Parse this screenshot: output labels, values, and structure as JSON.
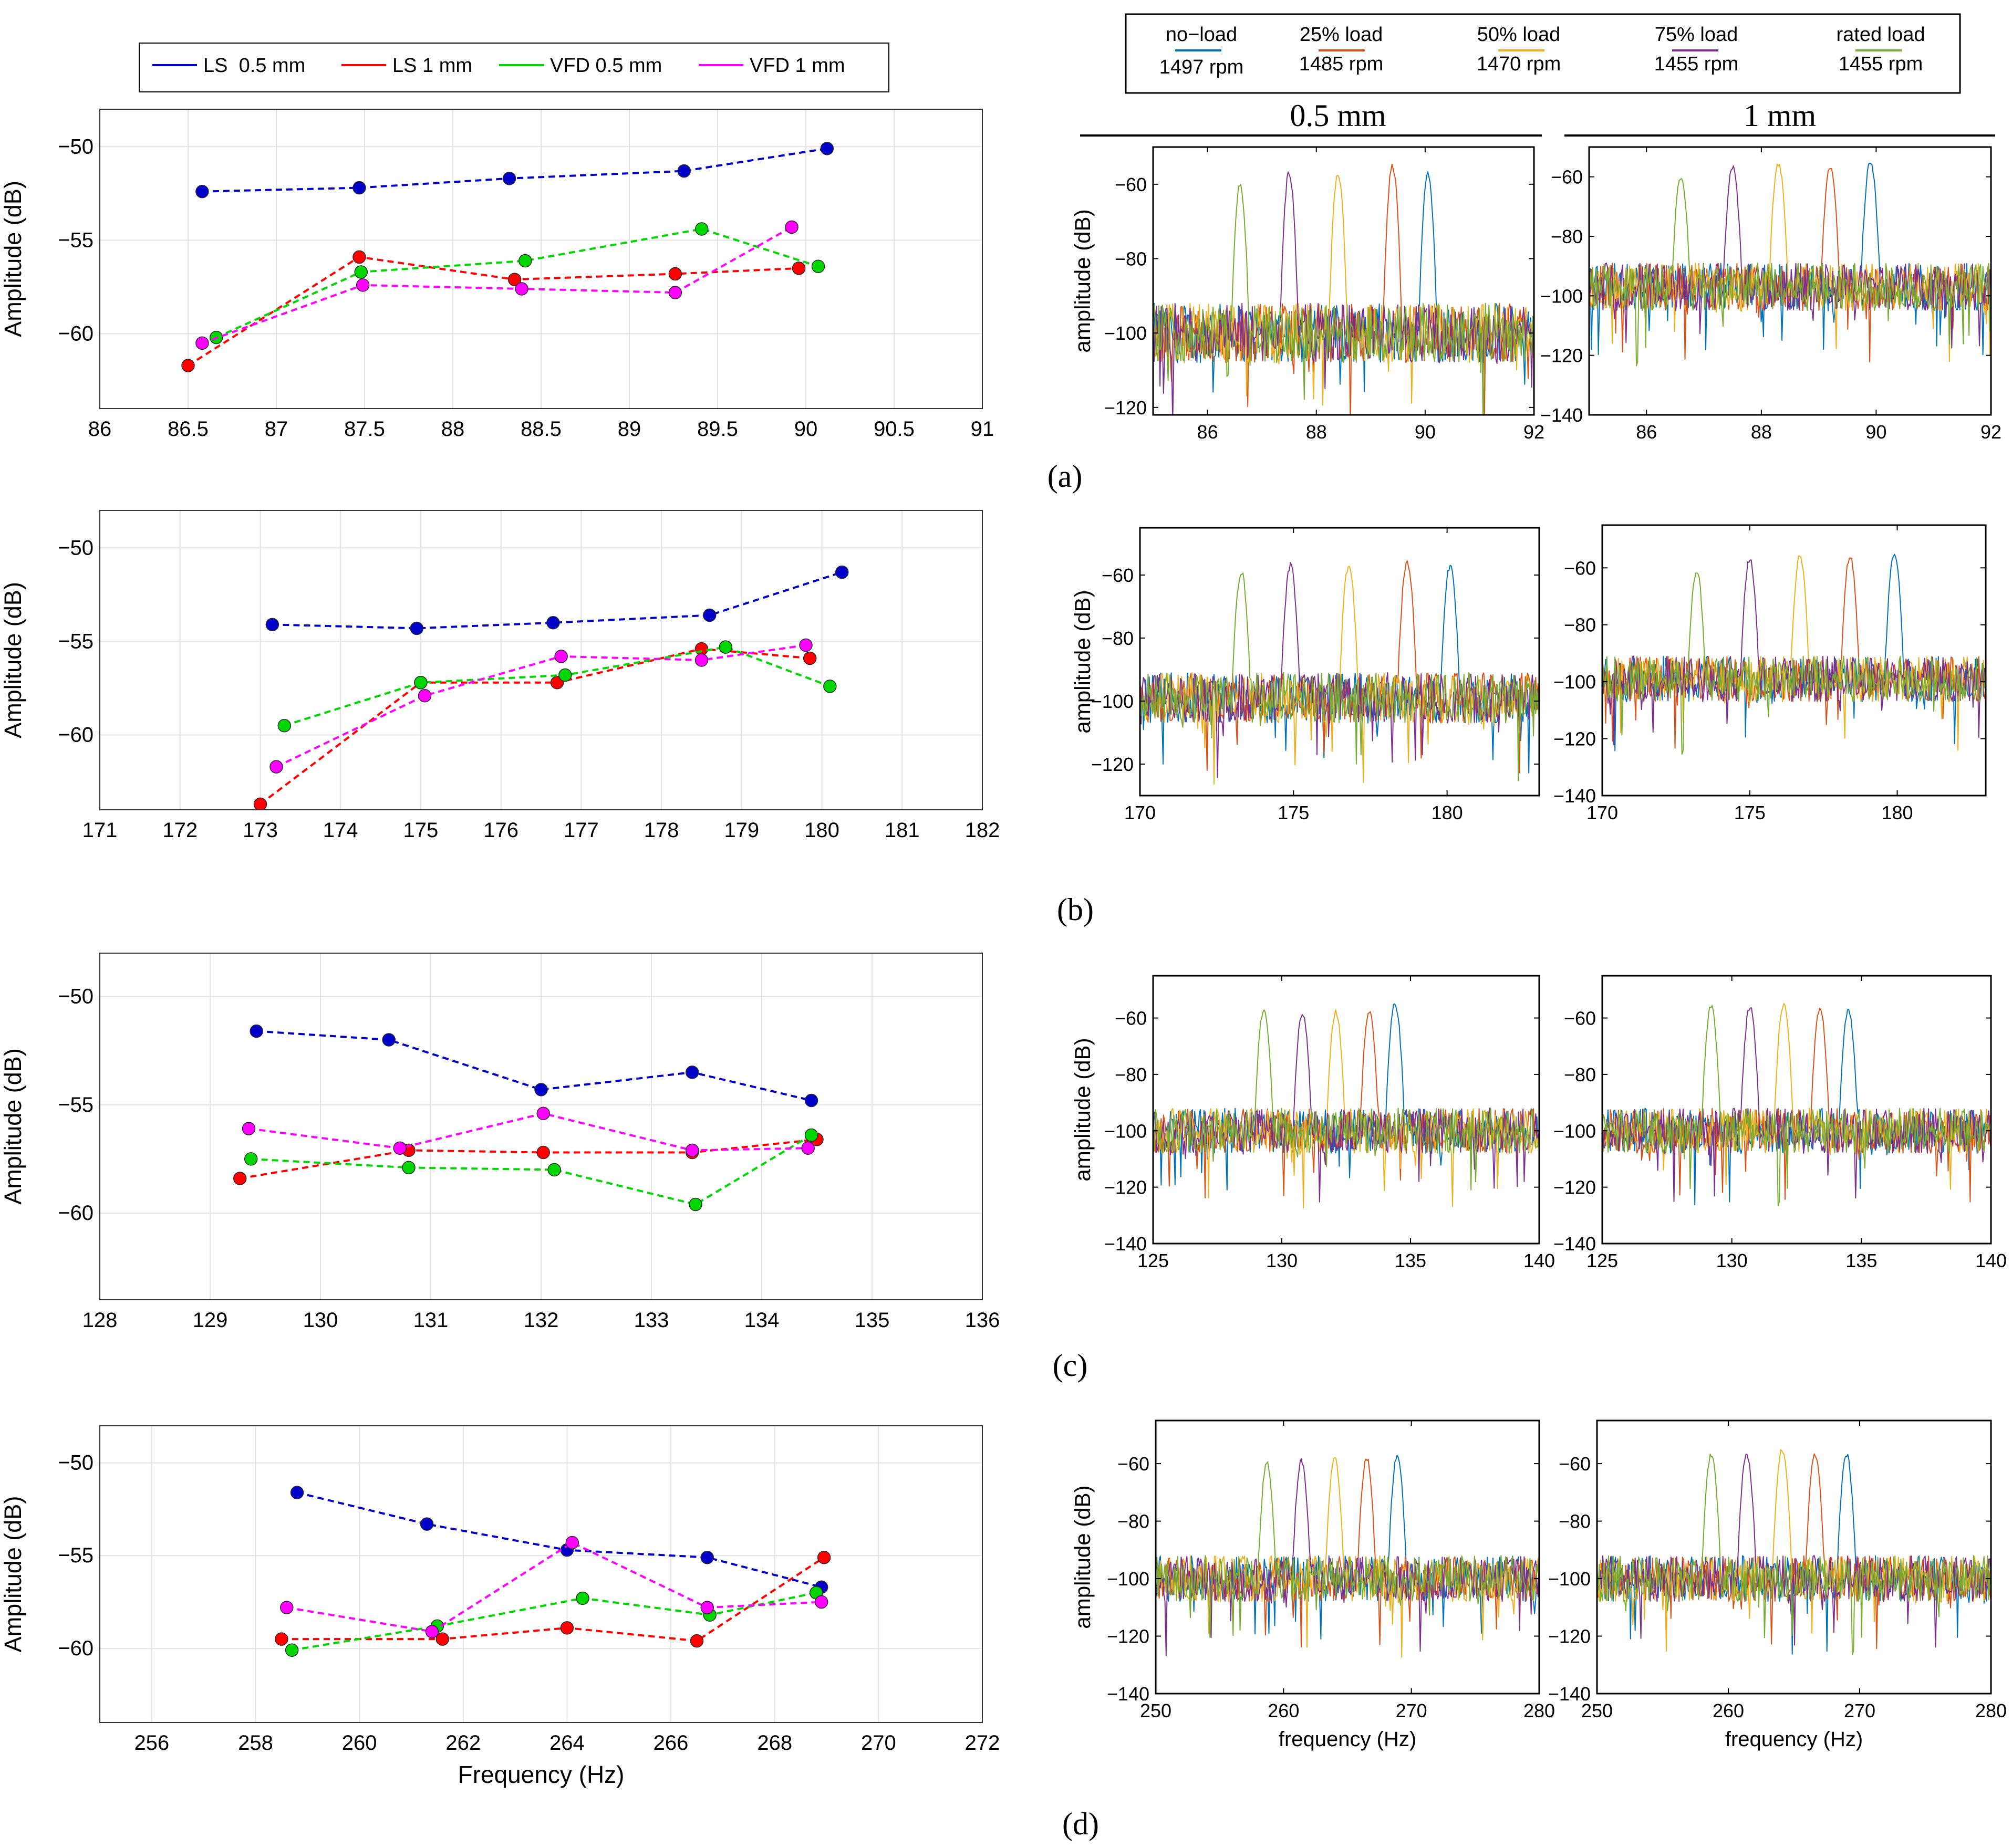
{
  "panel_letters": [
    "(a)",
    "(b)",
    "(c)",
    "(d)"
  ],
  "column_titles": {
    "left": "0.5 mm",
    "right": "1 mm"
  },
  "legend_left": [
    {
      "label": "LS  0.5 mm",
      "color": "#0000c8"
    },
    {
      "label": "LS 1 mm",
      "color": "#ff0000"
    },
    {
      "label": "VFD 0.5 mm",
      "color": "#00d700"
    },
    {
      "label": "VFD 1 mm",
      "color": "#ff00ff"
    }
  ],
  "legend_right": [
    {
      "load": "no−load",
      "speed": "1497 rpm",
      "color": "#0072bd"
    },
    {
      "load": "25% load",
      "speed": "1485 rpm",
      "color": "#d95319"
    },
    {
      "load": "50% load",
      "speed": "1470 rpm",
      "color": "#edb120"
    },
    {
      "load": "75% load",
      "speed": "1455 rpm",
      "color": "#7e2f8e"
    },
    {
      "load": "rated load",
      "speed": "1455 rpm",
      "color": "#77ac30"
    }
  ],
  "chart_data": [
    {
      "id": "a-left",
      "type": "line",
      "xlabel": "",
      "ylabel": "Amplitude (dB)",
      "xlim": [
        86,
        91
      ],
      "ylim": [
        -64,
        -48
      ],
      "xticks": [
        86,
        86.5,
        87,
        87.5,
        88,
        88.5,
        89,
        89.5,
        90,
        90.5,
        91
      ],
      "xtick_labels": [
        "86",
        "86.5",
        "87",
        "87.5",
        "88",
        "88.5",
        "89",
        "89.5",
        "90",
        "90.5",
        "91"
      ],
      "yticks": [
        -60,
        -55,
        -50
      ],
      "ytick_labels": [
        "−60",
        "−55",
        "−50"
      ],
      "series": [
        {
          "name": "LS  0.5 mm",
          "color": "#0000c8",
          "x": [
            86.58,
            87.47,
            88.32,
            89.31,
            90.12
          ],
          "y": [
            -52.4,
            -52.2,
            -51.7,
            -51.3,
            -50.1
          ]
        },
        {
          "name": "LS 1 mm",
          "color": "#ff0000",
          "x": [
            86.5,
            87.47,
            88.35,
            89.26,
            89.96
          ],
          "y": [
            -61.7,
            -55.9,
            -57.1,
            -56.8,
            -56.5
          ]
        },
        {
          "name": "VFD 0.5 mm",
          "color": "#00d700",
          "x": [
            86.66,
            87.48,
            88.41,
            89.41,
            90.07
          ],
          "y": [
            -60.2,
            -56.7,
            -56.1,
            -54.4,
            -56.4
          ]
        },
        {
          "name": "VFD 1 mm",
          "color": "#ff00ff",
          "x": [
            86.58,
            87.49,
            88.39,
            89.26,
            89.92
          ],
          "y": [
            -60.5,
            -57.4,
            -57.6,
            -57.8,
            -54.3
          ]
        }
      ]
    },
    {
      "id": "b-left",
      "type": "line",
      "xlabel": "",
      "ylabel": "Amplitude (dB)",
      "xlim": [
        171,
        182
      ],
      "ylim": [
        -64,
        -48
      ],
      "xticks": [
        171,
        172,
        173,
        174,
        175,
        176,
        177,
        178,
        179,
        180,
        181,
        182
      ],
      "xtick_labels": [
        "171",
        "172",
        "173",
        "174",
        "175",
        "176",
        "177",
        "178",
        "179",
        "180",
        "181",
        "182"
      ],
      "yticks": [
        -60,
        -55,
        -50
      ],
      "ytick_labels": [
        "−60",
        "−55",
        "−50"
      ],
      "series": [
        {
          "name": "LS  0.5 mm",
          "color": "#0000c8",
          "x": [
            173.15,
            174.95,
            176.65,
            178.6,
            180.25
          ],
          "y": [
            -54.1,
            -54.3,
            -54.0,
            -53.6,
            -51.3
          ]
        },
        {
          "name": "LS 1 mm",
          "color": "#ff0000",
          "x": [
            173.0,
            175.0,
            176.7,
            178.5,
            179.85
          ],
          "y": [
            -63.7,
            -57.2,
            -57.2,
            -55.4,
            -55.9
          ]
        },
        {
          "name": "VFD 0.5 mm",
          "color": "#00d700",
          "x": [
            173.3,
            175.0,
            176.8,
            178.8,
            180.1
          ],
          "y": [
            -59.5,
            -57.2,
            -56.8,
            -55.3,
            -57.4
          ]
        },
        {
          "name": "VFD 1 mm",
          "color": "#ff00ff",
          "x": [
            173.2,
            175.05,
            176.75,
            178.5,
            179.8
          ],
          "y": [
            -61.7,
            -57.9,
            -55.8,
            -56.0,
            -55.2
          ]
        }
      ]
    },
    {
      "id": "c-left",
      "type": "line",
      "xlabel": "",
      "ylabel": "Amplitude (dB)",
      "xlim": [
        128,
        136
      ],
      "ylim": [
        -64,
        -48
      ],
      "xticks": [
        128,
        129,
        130,
        131,
        132,
        133,
        134,
        135,
        136
      ],
      "xtick_labels": [
        "128",
        "129",
        "130",
        "131",
        "132",
        "133",
        "134",
        "135",
        "136"
      ],
      "yticks": [
        -60,
        -55,
        -50
      ],
      "ytick_labels": [
        "−60",
        "−55",
        "−50"
      ],
      "series": [
        {
          "name": "LS  0.5 mm",
          "color": "#0000c8",
          "x": [
            129.42,
            130.62,
            132.0,
            133.37,
            134.45
          ],
          "y": [
            -51.6,
            -52.0,
            -54.3,
            -53.5,
            -54.8
          ]
        },
        {
          "name": "LS 1 mm",
          "color": "#ff0000",
          "x": [
            129.27,
            130.8,
            132.02,
            133.37,
            134.5
          ],
          "y": [
            -58.4,
            -57.1,
            -57.2,
            -57.2,
            -56.6
          ]
        },
        {
          "name": "VFD 0.5 mm",
          "color": "#00d700",
          "x": [
            129.37,
            130.8,
            132.12,
            133.4,
            134.45
          ],
          "y": [
            -57.5,
            -57.9,
            -58.0,
            -59.6,
            -56.4
          ]
        },
        {
          "name": "VFD 1 mm",
          "color": "#ff00ff",
          "x": [
            129.35,
            130.72,
            132.02,
            133.37,
            134.42
          ],
          "y": [
            -56.1,
            -57.0,
            -55.4,
            -57.1,
            -57.0
          ]
        }
      ]
    },
    {
      "id": "d-left",
      "type": "line",
      "xlabel": "Frequency (Hz)",
      "ylabel": "Amplitude (dB)",
      "xlim": [
        255,
        272
      ],
      "ylim": [
        -64,
        -48
      ],
      "xticks": [
        256,
        258,
        260,
        262,
        264,
        266,
        268,
        270,
        272
      ],
      "xtick_labels": [
        "256",
        "258",
        "260",
        "262",
        "264",
        "266",
        "268",
        "270",
        "272"
      ],
      "yticks": [
        -60,
        -55,
        -50
      ],
      "ytick_labels": [
        "−60",
        "−55",
        "−50"
      ],
      "series": [
        {
          "name": "LS  0.5 mm",
          "color": "#0000c8",
          "x": [
            258.8,
            261.3,
            264.0,
            266.7,
            268.9
          ],
          "y": [
            -51.6,
            -53.3,
            -54.7,
            -55.1,
            -56.7
          ]
        },
        {
          "name": "LS 1 mm",
          "color": "#ff0000",
          "x": [
            258.5,
            261.6,
            264.0,
            266.5,
            268.95
          ],
          "y": [
            -59.5,
            -59.5,
            -58.9,
            -59.6,
            -55.1
          ]
        },
        {
          "name": "VFD 0.5 mm",
          "color": "#00d700",
          "x": [
            258.7,
            261.5,
            264.3,
            266.75,
            268.8
          ],
          "y": [
            -60.1,
            -58.8,
            -57.3,
            -58.2,
            -57.0
          ]
        },
        {
          "name": "VFD 1 mm",
          "color": "#ff00ff",
          "x": [
            258.6,
            261.4,
            264.1,
            266.7,
            268.9
          ],
          "y": [
            -57.8,
            -59.1,
            -54.3,
            -57.8,
            -57.5
          ]
        }
      ]
    },
    {
      "id": "a-right-05",
      "type": "line",
      "xlabel": "",
      "ylabel": "amplitude (dB)",
      "xlim": [
        85,
        92
      ],
      "ylim": [
        -122,
        -50
      ],
      "xticks": [
        86,
        88,
        90,
        92
      ],
      "xtick_labels": [
        "86",
        "88",
        "90",
        "92"
      ],
      "yticks": [
        -120,
        -100,
        -80,
        -60
      ],
      "ytick_labels": [
        "−120",
        "−100",
        "−80",
        "−60"
      ],
      "noise_floor_db": -100,
      "series": [
        {
          "name": "no−load",
          "color": "#0072bd",
          "peak_x": 90.05,
          "peak_y": -57
        },
        {
          "name": "25% load",
          "color": "#d95319",
          "peak_x": 89.4,
          "peak_y": -55
        },
        {
          "name": "50% load",
          "color": "#edb120",
          "peak_x": 88.4,
          "peak_y": -57
        },
        {
          "name": "75% load",
          "color": "#7e2f8e",
          "peak_x": 87.5,
          "peak_y": -57
        },
        {
          "name": "rated load",
          "color": "#77ac30",
          "peak_x": 86.6,
          "peak_y": -60
        }
      ]
    },
    {
      "id": "a-right-1",
      "type": "line",
      "xlabel": "",
      "ylabel": "",
      "xlim": [
        85,
        92
      ],
      "ylim": [
        -140,
        -50
      ],
      "xticks": [
        86,
        88,
        90,
        92
      ],
      "xtick_labels": [
        "86",
        "88",
        "90",
        "92"
      ],
      "yticks": [
        -140,
        -120,
        -100,
        -80,
        -60
      ],
      "ytick_labels": [
        "−140",
        "−120",
        "−100",
        "−80",
        "−60"
      ],
      "noise_floor_db": -97,
      "series": [
        {
          "name": "no−load",
          "color": "#0072bd",
          "peak_x": 89.9,
          "peak_y": -55
        },
        {
          "name": "25% load",
          "color": "#d95319",
          "peak_x": 89.2,
          "peak_y": -57
        },
        {
          "name": "50% load",
          "color": "#edb120",
          "peak_x": 88.3,
          "peak_y": -56
        },
        {
          "name": "75% load",
          "color": "#7e2f8e",
          "peak_x": 87.5,
          "peak_y": -57
        },
        {
          "name": "rated load",
          "color": "#77ac30",
          "peak_x": 86.6,
          "peak_y": -60
        }
      ]
    },
    {
      "id": "b-right-05",
      "type": "line",
      "xlabel": "",
      "ylabel": "amplitude (dB)",
      "xlim": [
        170,
        183
      ],
      "ylim": [
        -130,
        -45
      ],
      "xticks": [
        170,
        175,
        180
      ],
      "xtick_labels": [
        "170",
        "175",
        "180"
      ],
      "yticks": [
        -120,
        -100,
        -80,
        -60
      ],
      "ytick_labels": [
        "−120",
        "−100",
        "−80",
        "−60"
      ],
      "noise_floor_db": -99,
      "series": [
        {
          "name": "no−load",
          "color": "#0072bd",
          "peak_x": 180.1,
          "peak_y": -57
        },
        {
          "name": "25% load",
          "color": "#d95319",
          "peak_x": 178.7,
          "peak_y": -56
        },
        {
          "name": "50% load",
          "color": "#edb120",
          "peak_x": 176.8,
          "peak_y": -57
        },
        {
          "name": "75% load",
          "color": "#7e2f8e",
          "peak_x": 174.9,
          "peak_y": -57
        },
        {
          "name": "rated load",
          "color": "#77ac30",
          "peak_x": 173.3,
          "peak_y": -59
        }
      ]
    },
    {
      "id": "b-right-1",
      "type": "line",
      "xlabel": "",
      "ylabel": "",
      "xlim": [
        170,
        183
      ],
      "ylim": [
        -140,
        -45
      ],
      "xticks": [
        170,
        175,
        180
      ],
      "xtick_labels": [
        "170",
        "175",
        "180"
      ],
      "yticks": [
        -140,
        -120,
        -100,
        -80,
        -60
      ],
      "ytick_labels": [
        "−140",
        "−120",
        "−100",
        "−80",
        "−60"
      ],
      "noise_floor_db": -99,
      "series": [
        {
          "name": "no−load",
          "color": "#0072bd",
          "peak_x": 179.9,
          "peak_y": -55
        },
        {
          "name": "25% load",
          "color": "#d95319",
          "peak_x": 178.4,
          "peak_y": -56
        },
        {
          "name": "50% load",
          "color": "#edb120",
          "peak_x": 176.7,
          "peak_y": -56
        },
        {
          "name": "75% load",
          "color": "#7e2f8e",
          "peak_x": 175.0,
          "peak_y": -57
        },
        {
          "name": "rated load",
          "color": "#77ac30",
          "peak_x": 173.2,
          "peak_y": -61
        }
      ]
    },
    {
      "id": "c-right-05",
      "type": "line",
      "xlabel": "",
      "ylabel": "amplitude (dB)",
      "xlim": [
        125,
        140
      ],
      "ylim": [
        -140,
        -45
      ],
      "xticks": [
        125,
        130,
        135,
        140
      ],
      "xtick_labels": [
        "125",
        "130",
        "135",
        "140"
      ],
      "yticks": [
        -140,
        -120,
        -100,
        -80,
        -60
      ],
      "ytick_labels": [
        "−140",
        "−120",
        "−100",
        "−80",
        "−60"
      ],
      "noise_floor_db": -100,
      "series": [
        {
          "name": "no−load",
          "color": "#0072bd",
          "peak_x": 134.4,
          "peak_y": -55
        },
        {
          "name": "25% load",
          "color": "#d95319",
          "peak_x": 133.4,
          "peak_y": -58
        },
        {
          "name": "50% load",
          "color": "#edb120",
          "peak_x": 132.1,
          "peak_y": -58
        },
        {
          "name": "75% load",
          "color": "#7e2f8e",
          "peak_x": 130.8,
          "peak_y": -58
        },
        {
          "name": "rated load",
          "color": "#77ac30",
          "peak_x": 129.3,
          "peak_y": -57
        }
      ]
    },
    {
      "id": "c-right-1",
      "type": "line",
      "xlabel": "",
      "ylabel": "",
      "xlim": [
        125,
        140
      ],
      "ylim": [
        -140,
        -45
      ],
      "xticks": [
        125,
        130,
        135,
        140
      ],
      "xtick_labels": [
        "125",
        "130",
        "135",
        "140"
      ],
      "yticks": [
        -140,
        -120,
        -100,
        -80,
        -60
      ],
      "ytick_labels": [
        "−140",
        "−120",
        "−100",
        "−80",
        "−60"
      ],
      "noise_floor_db": -100,
      "series": [
        {
          "name": "no−load",
          "color": "#0072bd",
          "peak_x": 134.5,
          "peak_y": -57
        },
        {
          "name": "25% load",
          "color": "#d95319",
          "peak_x": 133.4,
          "peak_y": -57
        },
        {
          "name": "50% load",
          "color": "#edb120",
          "peak_x": 132.0,
          "peak_y": -55
        },
        {
          "name": "75% load",
          "color": "#7e2f8e",
          "peak_x": 130.7,
          "peak_y": -56
        },
        {
          "name": "rated load",
          "color": "#77ac30",
          "peak_x": 129.2,
          "peak_y": -56
        }
      ]
    },
    {
      "id": "d-right-05",
      "type": "line",
      "xlabel": "frequency (Hz)",
      "ylabel": "amplitude (dB)",
      "xlim": [
        250,
        280
      ],
      "ylim": [
        -140,
        -45
      ],
      "xticks": [
        250,
        260,
        270,
        280
      ],
      "xtick_labels": [
        "250",
        "260",
        "270",
        "280"
      ],
      "yticks": [
        -140,
        -120,
        -100,
        -80,
        -60
      ],
      "ytick_labels": [
        "−140",
        "−120",
        "−100",
        "−80",
        "−60"
      ],
      "noise_floor_db": -100,
      "series": [
        {
          "name": "no−load",
          "color": "#0072bd",
          "peak_x": 268.9,
          "peak_y": -57
        },
        {
          "name": "25% load",
          "color": "#d95319",
          "peak_x": 266.5,
          "peak_y": -58
        },
        {
          "name": "50% load",
          "color": "#edb120",
          "peak_x": 264.0,
          "peak_y": -58
        },
        {
          "name": "75% load",
          "color": "#7e2f8e",
          "peak_x": 261.4,
          "peak_y": -59
        },
        {
          "name": "rated load",
          "color": "#77ac30",
          "peak_x": 258.7,
          "peak_y": -60
        }
      ]
    },
    {
      "id": "d-right-1",
      "type": "line",
      "xlabel": "frequency (Hz)",
      "ylabel": "",
      "xlim": [
        250,
        280
      ],
      "ylim": [
        -140,
        -45
      ],
      "xticks": [
        250,
        260,
        270,
        280
      ],
      "xtick_labels": [
        "250",
        "260",
        "270",
        "280"
      ],
      "yticks": [
        -140,
        -120,
        -100,
        -80,
        -60
      ],
      "ytick_labels": [
        "−140",
        "−120",
        "−100",
        "−80",
        "−60"
      ],
      "noise_floor_db": -100,
      "series": [
        {
          "name": "no−load",
          "color": "#0072bd",
          "peak_x": 269.0,
          "peak_y": -57
        },
        {
          "name": "25% load",
          "color": "#d95319",
          "peak_x": 266.6,
          "peak_y": -57
        },
        {
          "name": "50% load",
          "color": "#edb120",
          "peak_x": 264.1,
          "peak_y": -55
        },
        {
          "name": "75% load",
          "color": "#7e2f8e",
          "peak_x": 261.4,
          "peak_y": -57
        },
        {
          "name": "rated load",
          "color": "#77ac30",
          "peak_x": 258.7,
          "peak_y": -57
        }
      ]
    }
  ]
}
